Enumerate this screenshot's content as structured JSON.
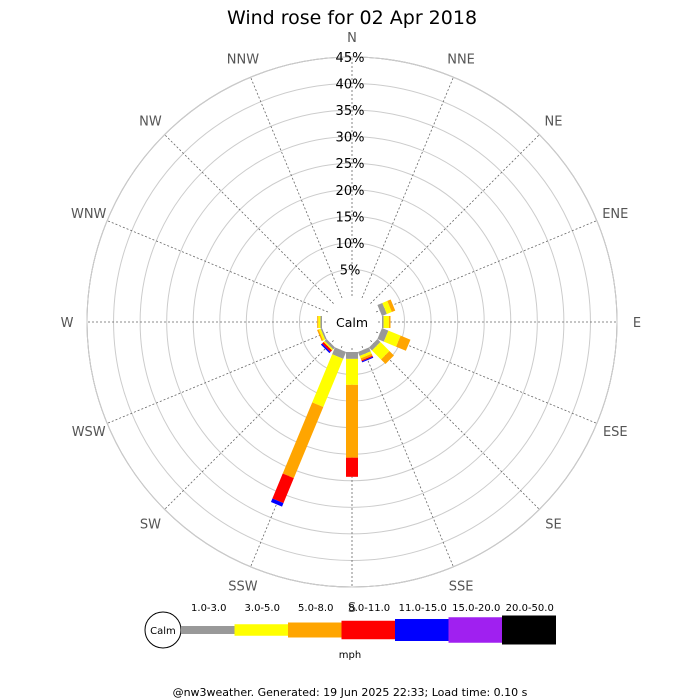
{
  "chart_data": {
    "type": "wind-rose",
    "title": "Wind rose for 02 Apr 2018",
    "directions": [
      "N",
      "NNE",
      "NE",
      "ENE",
      "E",
      "ESE",
      "SE",
      "SSE",
      "S",
      "SSW",
      "SW",
      "WSW",
      "W",
      "WNW",
      "NW",
      "NNW"
    ],
    "radial_ticks": [
      "5%",
      "10%",
      "15%",
      "20%",
      "25%",
      "30%",
      "35%",
      "40%",
      "45%"
    ],
    "radial_max": 45,
    "calm_label": "Calm",
    "speed_bins": [
      {
        "label": "1.0-3.0",
        "color": "#999999"
      },
      {
        "label": "3.0-5.0",
        "color": "#ffff00"
      },
      {
        "label": "5.0-8.0",
        "color": "#ffa500"
      },
      {
        "label": "8.0-11.0",
        "color": "#ff0000"
      },
      {
        "label": "11.0-15.0",
        "color": "#0000ff"
      },
      {
        "label": "15.0-20.0",
        "color": "#a020f0"
      },
      {
        "label": "20.0-50.0",
        "color": "#000000"
      }
    ],
    "speed_unit": "mph",
    "series": [
      {
        "direction": "N",
        "values": [
          0,
          0,
          0,
          0,
          0,
          0,
          0
        ]
      },
      {
        "direction": "NNE",
        "values": [
          0,
          0,
          0,
          0,
          0,
          0,
          0
        ]
      },
      {
        "direction": "NE",
        "values": [
          0,
          0,
          0,
          0,
          0,
          0,
          0
        ]
      },
      {
        "direction": "ENE",
        "values": [
          1.0,
          1.0,
          0.7,
          0,
          0,
          0,
          0
        ]
      },
      {
        "direction": "E",
        "values": [
          0.3,
          1.0,
          0.3,
          0,
          0,
          0,
          0
        ]
      },
      {
        "direction": "ESE",
        "values": [
          1.3,
          2.5,
          2.0,
          0,
          0,
          0,
          0
        ]
      },
      {
        "direction": "SE",
        "values": [
          0.8,
          2.4,
          1.2,
          0,
          0,
          0,
          0
        ]
      },
      {
        "direction": "SSE",
        "values": [
          0.8,
          0.5,
          0.4,
          0.2,
          0.2,
          0,
          0
        ]
      },
      {
        "direction": "S",
        "values": [
          1.3,
          4.9,
          13.7,
          3.6,
          0,
          0,
          0
        ]
      },
      {
        "direction": "SSW",
        "values": [
          1.4,
          9.8,
          14.5,
          5.1,
          0.7,
          0,
          0
        ]
      },
      {
        "direction": "SW",
        "values": [
          0.5,
          0.3,
          0,
          0.4,
          0.3,
          0,
          0
        ]
      },
      {
        "direction": "WSW",
        "values": [
          0.3,
          0.4,
          0.3,
          0,
          0,
          0,
          0
        ]
      },
      {
        "direction": "W",
        "values": [
          0.3,
          0.4,
          0.2,
          0,
          0,
          0,
          0
        ]
      },
      {
        "direction": "WNW",
        "values": [
          0,
          0,
          0,
          0,
          0,
          0,
          0
        ]
      },
      {
        "direction": "NW",
        "values": [
          0,
          0,
          0,
          0,
          0,
          0,
          0
        ]
      },
      {
        "direction": "NNW",
        "values": [
          0,
          0,
          0,
          0,
          0,
          0,
          0
        ]
      }
    ]
  },
  "footer": "@nw3weather. Generated: 19 Jun 2025 22:33; Load time: 0.10 s"
}
